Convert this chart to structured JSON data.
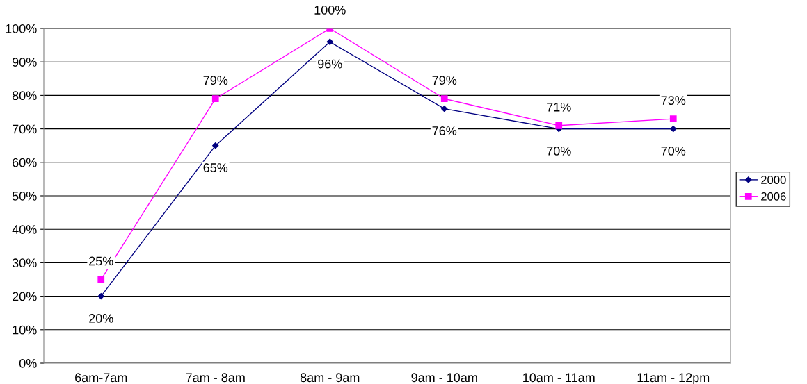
{
  "chart_data": {
    "type": "line",
    "categories": [
      "6am-7am",
      "7am - 8am",
      "8am - 9am",
      "9am - 10am",
      "10am - 11am",
      "11am - 12pm"
    ],
    "series": [
      {
        "name": "2000",
        "color": "#000080",
        "values": [
          20,
          65,
          96,
          76,
          70,
          70
        ],
        "marker": "diamond",
        "value_labels": [
          "20%",
          "65%",
          "96%",
          "76%",
          "70%",
          "70%"
        ]
      },
      {
        "name": "2006",
        "color": "#ff00ff",
        "values": [
          25,
          79,
          100,
          79,
          71,
          73
        ],
        "marker": "square",
        "value_labels": [
          "25%",
          "79%",
          "100%",
          "79%",
          "71%",
          "73%"
        ]
      }
    ],
    "ylim": [
      0,
      100
    ],
    "yticks": [
      {
        "value": 0,
        "label": "0%"
      },
      {
        "value": 10,
        "label": "10%"
      },
      {
        "value": 20,
        "label": "20%"
      },
      {
        "value": 30,
        "label": "30%"
      },
      {
        "value": 40,
        "label": "40%"
      },
      {
        "value": 50,
        "label": "50%"
      },
      {
        "value": 60,
        "label": "60%"
      },
      {
        "value": 70,
        "label": "70%"
      },
      {
        "value": 80,
        "label": "80%"
      },
      {
        "value": 90,
        "label": "90%"
      },
      {
        "value": 100,
        "label": "100%"
      }
    ],
    "grid": "y",
    "legend": "right",
    "line_style": "solid"
  }
}
